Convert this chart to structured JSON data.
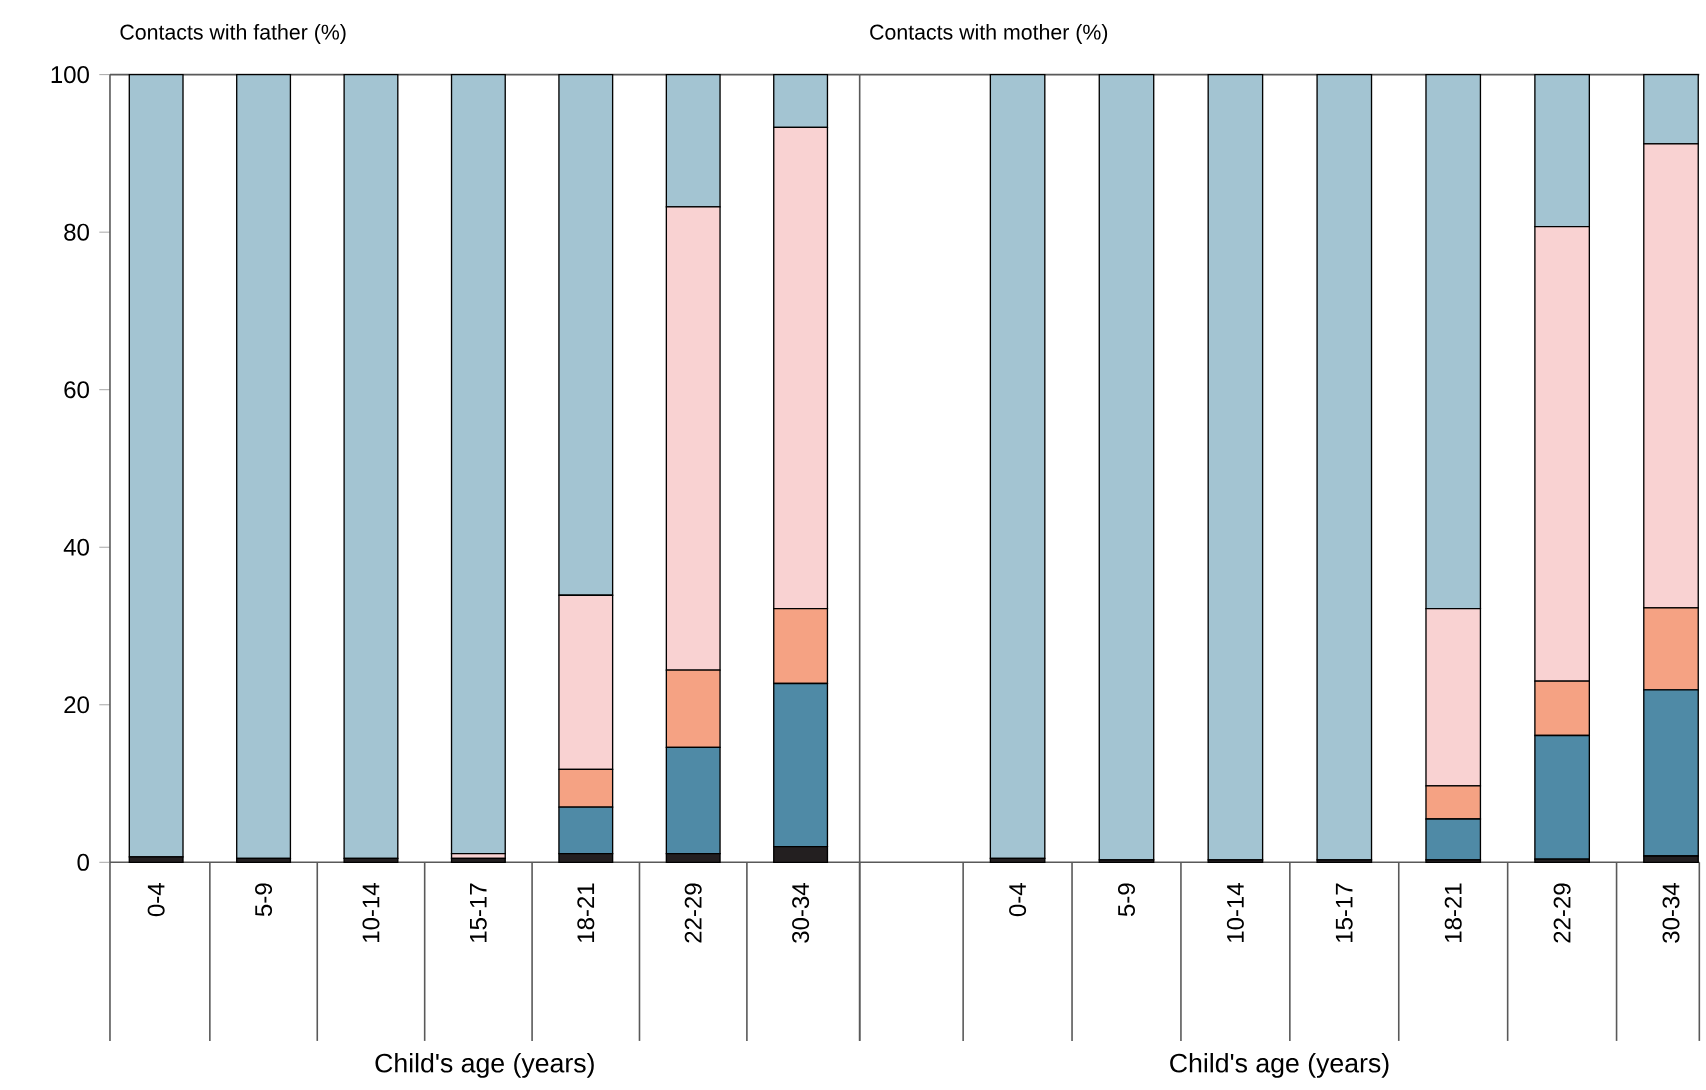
{
  "chart_data": [
    {
      "type": "bar",
      "stacked": true,
      "title": "Contacts with father (%)",
      "xlabel": "Child's age (years)",
      "categories": [
        "0-4",
        "5-9",
        "10-14",
        "15-17",
        "18-21",
        "22-29",
        "30-34"
      ],
      "ylim": [
        0,
        100
      ],
      "yticks": [
        0,
        20,
        40,
        60,
        80,
        100
      ],
      "series": [
        {
          "color": "#231f20",
          "values": [
            0.7,
            0.5,
            0.5,
            0.5,
            1.1,
            1.1,
            2.0
          ]
        },
        {
          "color": "#4f8aa6",
          "values": [
            0,
            0,
            0,
            0,
            5.9,
            13.5,
            20.7
          ]
        },
        {
          "color": "#f5a283",
          "values": [
            0,
            0,
            0,
            0,
            4.8,
            9.8,
            9.5
          ]
        },
        {
          "color": "#f9d2d2",
          "values": [
            0,
            0,
            0,
            0.6,
            22.1,
            58.8,
            61.1
          ]
        },
        {
          "color": "#a3c4d2",
          "values": [
            99.3,
            99.5,
            99.5,
            98.9,
            66.1,
            16.8,
            6.7
          ]
        }
      ]
    },
    {
      "type": "bar",
      "stacked": true,
      "title": "Contacts with mother (%)",
      "xlabel": "Child's age (years)",
      "categories": [
        "0-4",
        "5-9",
        "10-14",
        "15-17",
        "18-21",
        "22-29",
        "30-34"
      ],
      "ylim": [
        0,
        100
      ],
      "yticks": [
        0,
        20,
        40,
        60,
        80,
        100
      ],
      "tick_labels": "x",
      "series": [
        {
          "color": "#231f20",
          "values": [
            0.5,
            0.3,
            0.3,
            0.3,
            0.3,
            0.4,
            0.8
          ]
        },
        {
          "color": "#4f8aa6",
          "values": [
            0,
            0,
            0,
            0,
            5.2,
            15.7,
            21.1
          ]
        },
        {
          "color": "#f5a283",
          "values": [
            0,
            0,
            0,
            0,
            4.2,
            6.9,
            10.4
          ]
        },
        {
          "color": "#f9d2d2",
          "values": [
            0,
            0,
            0,
            0,
            22.5,
            57.7,
            58.9
          ]
        },
        {
          "color": "#a3c4d2",
          "values": [
            99.5,
            99.7,
            99.7,
            99.7,
            67.8,
            19.3,
            8.8
          ]
        }
      ]
    }
  ]
}
